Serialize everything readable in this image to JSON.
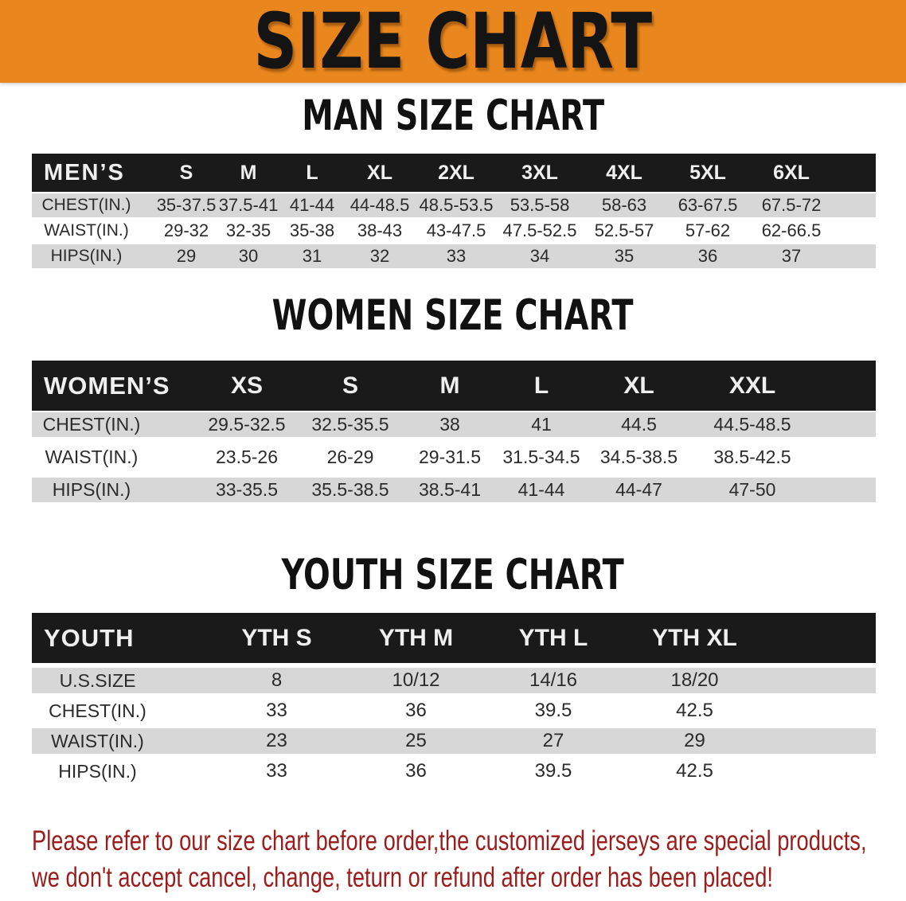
{
  "banner": {
    "title": "SIZE CHART",
    "bg_color": "#e9861d"
  },
  "sections": [
    {
      "heading": "MAN SIZE CHART",
      "table": {
        "label": "MEN’S",
        "columns": [
          "S",
          "M",
          "L",
          "XL",
          "2XL",
          "3XL",
          "4XL",
          "5XL",
          "6XL"
        ],
        "rows": [
          {
            "label": "CHEST(IN.)",
            "values": [
              "35-37.5",
              "37.5-41",
              "41-44",
              "44-48.5",
              "48.5-53.5",
              "53.5-58",
              "58-63",
              "63-67.5",
              "67.5-72"
            ]
          },
          {
            "label": "WAIST(IN.)",
            "values": [
              "29-32",
              "32-35",
              "35-38",
              "38-43",
              "43-47.5",
              "47.5-52.5",
              "52.5-57",
              "57-62",
              "62-66.5"
            ]
          },
          {
            "label": "HIPS(IN.)",
            "values": [
              "29",
              "30",
              "31",
              "32",
              "33",
              "34",
              "35",
              "36",
              "37"
            ]
          }
        ]
      }
    },
    {
      "heading": "WOMEN SIZE CHART",
      "table": {
        "label": "WOMEN’S",
        "columns": [
          "XS",
          "S",
          "M",
          "L",
          "XL",
          "XXL"
        ],
        "rows": [
          {
            "label": "CHEST(IN.)",
            "values": [
              "29.5-32.5",
              "32.5-35.5",
              "38",
              "41",
              "44.5",
              "44.5-48.5"
            ]
          },
          {
            "label": "WAIST(IN.)",
            "values": [
              "23.5-26",
              "26-29",
              "29-31.5",
              "31.5-34.5",
              "34.5-38.5",
              "38.5-42.5"
            ]
          },
          {
            "label": "HIPS(IN.)",
            "values": [
              "33-35.5",
              "35.5-38.5",
              "38.5-41",
              "41-44",
              "44-47",
              "47-50"
            ]
          }
        ]
      }
    },
    {
      "heading": "YOUTH SIZE CHART",
      "table": {
        "label": "YOUTH",
        "columns": [
          "YTH S",
          "YTH M",
          "YTH L",
          "YTH XL"
        ],
        "rows": [
          {
            "label": "U.S.SIZE",
            "values": [
              "8",
              "10/12",
              "14/16",
              "18/20"
            ]
          },
          {
            "label": "CHEST(IN.)",
            "values": [
              "33",
              "36",
              "39.5",
              "42.5"
            ]
          },
          {
            "label": "WAIST(IN.)",
            "values": [
              "23",
              "25",
              "27",
              "29"
            ]
          },
          {
            "label": "HIPS(IN.)",
            "values": [
              "33",
              "36",
              "39.5",
              "42.5"
            ]
          }
        ]
      }
    }
  ],
  "footer": {
    "line1": "Please refer to our size chart before order,the customized jerseys are special products,",
    "line2": "we don't accept cancel, change, teturn or refund after order has been placed!"
  }
}
